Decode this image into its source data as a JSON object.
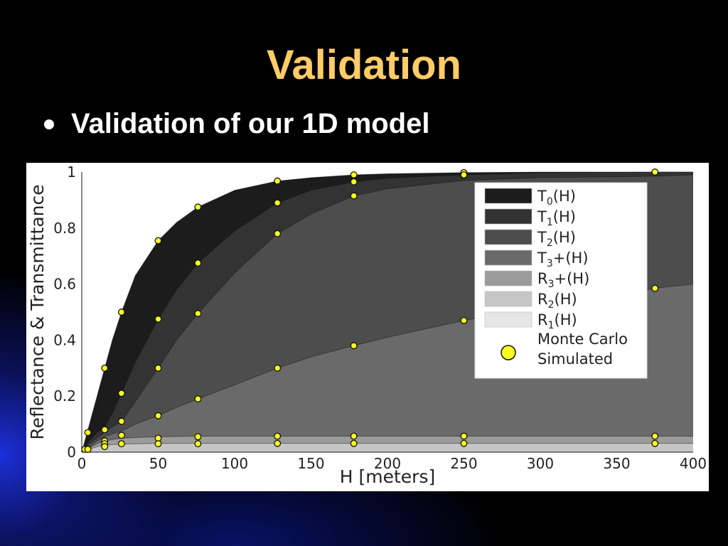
{
  "slide": {
    "title": "Validation",
    "bullet": "Validation of our 1D model"
  },
  "chart_data": {
    "type": "area",
    "xlabel": "H [meters]",
    "ylabel": "Reflectance & Transmittance",
    "xlim": [
      0,
      400
    ],
    "ylim": [
      0,
      1
    ],
    "xticks": [
      0,
      50,
      100,
      150,
      200,
      250,
      300,
      350,
      400
    ],
    "yticks": [
      0,
      0.2,
      0.4,
      0.6,
      0.8,
      1
    ],
    "ytick_labels": [
      "0",
      "0.2",
      "0.4",
      "0.6",
      "0.8",
      "1"
    ],
    "grid": false,
    "legend_position": "top-right",
    "boundaries": [
      {
        "name": "T0(H)",
        "color": "#1c1c1c",
        "x": [
          0,
          2,
          5,
          10,
          15,
          20,
          26,
          35,
          50,
          62,
          76,
          100,
          128,
          150,
          178,
          200,
          250,
          300,
          375,
          400
        ],
        "y": [
          0,
          0.04,
          0.1,
          0.2,
          0.3,
          0.4,
          0.5,
          0.63,
          0.755,
          0.82,
          0.875,
          0.935,
          0.968,
          0.98,
          0.99,
          0.994,
          0.998,
          1.0,
          1.0,
          1.0
        ]
      },
      {
        "name": "T1(H)",
        "color": "#333333",
        "x": [
          0,
          5,
          10,
          15,
          20,
          26,
          35,
          50,
          62,
          76,
          100,
          128,
          150,
          178,
          200,
          250,
          300,
          375,
          400
        ],
        "y": [
          0,
          0.04,
          0.07,
          0.09,
          0.14,
          0.21,
          0.32,
          0.475,
          0.58,
          0.675,
          0.79,
          0.89,
          0.935,
          0.965,
          0.978,
          0.99,
          0.997,
          1.0,
          1.0
        ]
      },
      {
        "name": "T2(H)",
        "color": "#4d4d4d",
        "x": [
          0,
          5,
          10,
          15,
          20,
          26,
          35,
          50,
          62,
          76,
          100,
          128,
          150,
          178,
          200,
          250,
          300,
          375,
          400
        ],
        "y": [
          0,
          0.03,
          0.05,
          0.07,
          0.09,
          0.11,
          0.18,
          0.3,
          0.4,
          0.495,
          0.64,
          0.78,
          0.85,
          0.915,
          0.94,
          0.97,
          0.98,
          0.985,
          0.99
        ]
      },
      {
        "name": "T3+(H)",
        "color": "#6a6a6a",
        "x": [
          0,
          5,
          10,
          15,
          20,
          26,
          35,
          50,
          62,
          76,
          100,
          128,
          150,
          178,
          200,
          250,
          300,
          375,
          400
        ],
        "y": [
          0,
          0.02,
          0.04,
          0.055,
          0.065,
          0.075,
          0.1,
          0.13,
          0.16,
          0.19,
          0.24,
          0.3,
          0.34,
          0.38,
          0.41,
          0.47,
          0.52,
          0.585,
          0.6
        ]
      },
      {
        "name": "R3+(H)",
        "color": "#9b9b9b",
        "x": [
          0,
          5,
          10,
          15,
          20,
          26,
          35,
          50,
          62,
          76,
          100,
          128,
          150,
          178,
          200,
          250,
          300,
          375,
          400
        ],
        "y": [
          0,
          0.015,
          0.03,
          0.04,
          0.045,
          0.05,
          0.052,
          0.055,
          0.056,
          0.057,
          0.057,
          0.057,
          0.057,
          0.057,
          0.057,
          0.057,
          0.057,
          0.057,
          0.057
        ]
      },
      {
        "name": "R2(H)",
        "color": "#c6c6c6",
        "x": [
          0,
          5,
          10,
          15,
          20,
          26,
          35,
          50,
          62,
          76,
          100,
          128,
          150,
          178,
          200,
          250,
          300,
          375,
          400
        ],
        "y": [
          0,
          0.01,
          0.02,
          0.024,
          0.027,
          0.029,
          0.03,
          0.031,
          0.031,
          0.031,
          0.031,
          0.031,
          0.031,
          0.031,
          0.031,
          0.031,
          0.031,
          0.031,
          0.031
        ]
      },
      {
        "name": "R1(H)",
        "color": "#e6e6e6",
        "x": [
          0,
          400
        ],
        "y": [
          0,
          0
        ]
      }
    ],
    "monte_carlo": {
      "name": "Monte Carlo Simulated",
      "color": "#ffff22",
      "points": [
        [
          2,
          0.01
        ],
        [
          4,
          0.01
        ],
        [
          4,
          0.07
        ],
        [
          15,
          0.3
        ],
        [
          15,
          0.08
        ],
        [
          15,
          0.04
        ],
        [
          15,
          0.03
        ],
        [
          15,
          0.02
        ],
        [
          26,
          0.5
        ],
        [
          26,
          0.21
        ],
        [
          26,
          0.11
        ],
        [
          26,
          0.06
        ],
        [
          26,
          0.03
        ],
        [
          50,
          0.755
        ],
        [
          50,
          0.475
        ],
        [
          50,
          0.3
        ],
        [
          50,
          0.13
        ],
        [
          50,
          0.05
        ],
        [
          50,
          0.03
        ],
        [
          76,
          0.875
        ],
        [
          76,
          0.675
        ],
        [
          76,
          0.495
        ],
        [
          76,
          0.19
        ],
        [
          76,
          0.055
        ],
        [
          76,
          0.03
        ],
        [
          128,
          0.968
        ],
        [
          128,
          0.89
        ],
        [
          128,
          0.78
        ],
        [
          128,
          0.3
        ],
        [
          128,
          0.057
        ],
        [
          128,
          0.031
        ],
        [
          178,
          0.99
        ],
        [
          178,
          0.965
        ],
        [
          178,
          0.915
        ],
        [
          178,
          0.38
        ],
        [
          178,
          0.057
        ],
        [
          178,
          0.031
        ],
        [
          250,
          0.998
        ],
        [
          250,
          0.99
        ],
        [
          250,
          0.47
        ],
        [
          250,
          0.057
        ],
        [
          250,
          0.031
        ],
        [
          375,
          1.0
        ],
        [
          375,
          0.585
        ],
        [
          375,
          0.057
        ],
        [
          375,
          0.031
        ]
      ]
    },
    "legend": [
      {
        "base": "T",
        "sub": "0",
        "suffix": "(H)",
        "color": "#1c1c1c"
      },
      {
        "base": "T",
        "sub": "1",
        "suffix": "(H)",
        "color": "#333333"
      },
      {
        "base": "T",
        "sub": "2",
        "suffix": "(H)",
        "color": "#4d4d4d"
      },
      {
        "base": "T",
        "sub": "3",
        "suffix": "+(H)",
        "color": "#6a6a6a"
      },
      {
        "base": "R",
        "sub": "3",
        "suffix": "+(H)",
        "color": "#9b9b9b"
      },
      {
        "base": "R",
        "sub": "2",
        "suffix": "(H)",
        "color": "#c6c6c6"
      },
      {
        "base": "R",
        "sub": "1",
        "suffix": "(H)",
        "color": "#e6e6e6"
      }
    ],
    "legend_marker_line1": "Monte Carlo",
    "legend_marker_line2": "Simulated"
  }
}
